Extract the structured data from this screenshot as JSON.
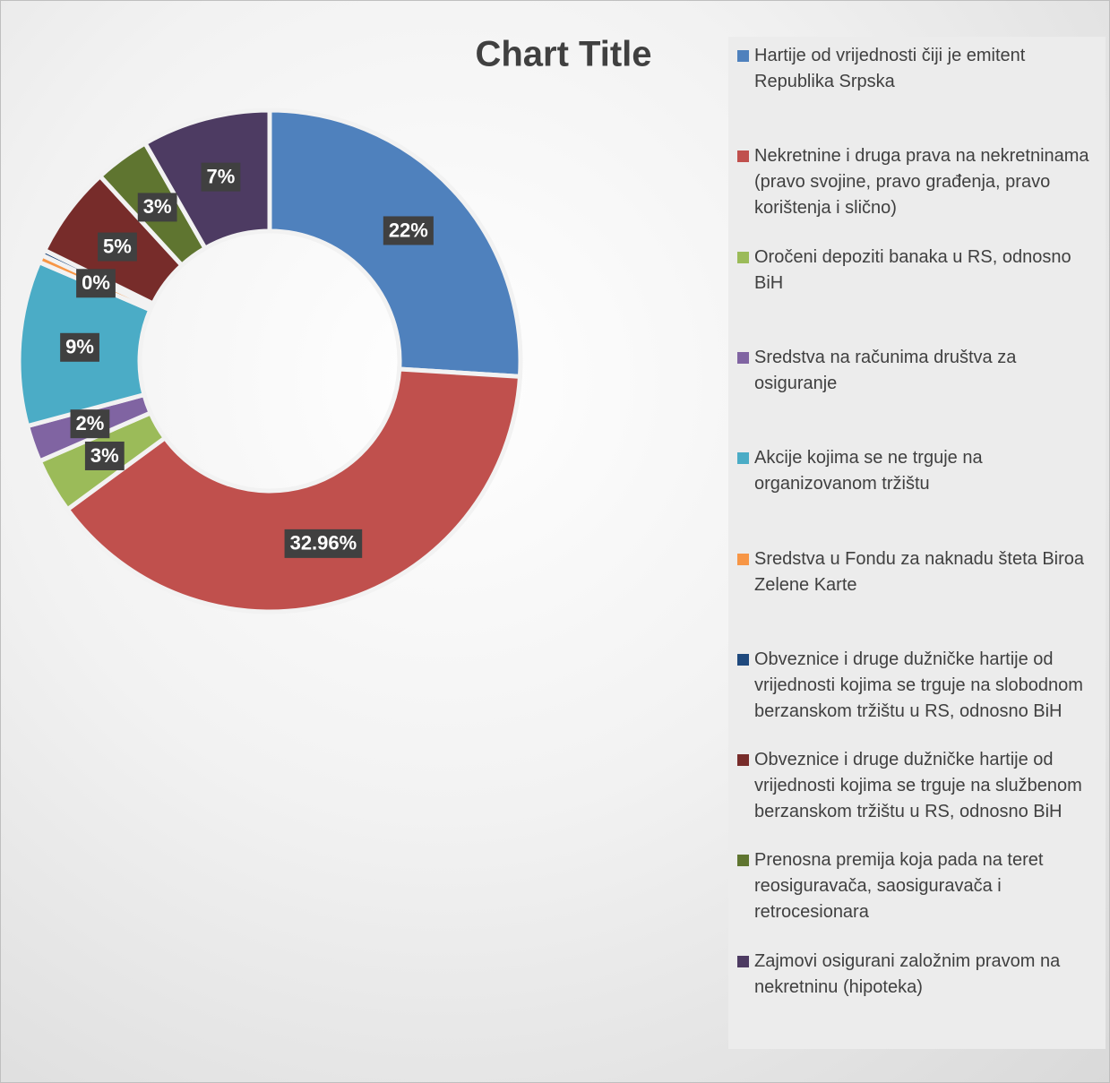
{
  "chart_data": {
    "type": "donut",
    "title": "Chart Title",
    "categories": [
      "Hartije od vrijednosti čiji je emitent Republika Srpska",
      "Nekretnine i druga prava na nekretninama (pravo svojine, pravo građenja, pravo korištenja i slično)",
      "Oročeni depoziti banaka u RS, odnosno BiH",
      "Sredstva na računima društva za osiguranje",
      "Akcije kojima se ne trguje na organizovanom tržištu",
      "Sredstva u Fondu za naknadu šteta Biroa Zelene Karte",
      "Obveznice i druge dužničke hartije od vrijednosti kojima se trguje na slobodnom berzanskom tržištu u RS, odnosno BiH",
      "Obveznice i druge dužničke hartije od vrijednosti kojima se trguje na službenom berzanskom tržištu u RS, odnosno BiH",
      "Prenosna premija koja pada na teret reosiguravača, saosiguravača i retrocesionara",
      "Zajmovi osigurani založnim pravom na nekretninu (hipoteka)"
    ],
    "values": [
      22,
      32.96,
      3,
      2,
      9,
      0.4,
      0.3,
      5,
      3,
      7
    ],
    "value_labels": [
      "22%",
      "32.96%",
      "3%",
      "2%",
      "9%",
      "0%",
      null,
      "5%",
      "3%",
      "7%"
    ],
    "colors": [
      "#4f81bd",
      "#c0504d",
      "#9bbb59",
      "#8064a2",
      "#4bacc6",
      "#f79646",
      "#1f497d",
      "#772c2a",
      "#5f7530",
      "#4d3b62"
    ],
    "legend": "right"
  }
}
